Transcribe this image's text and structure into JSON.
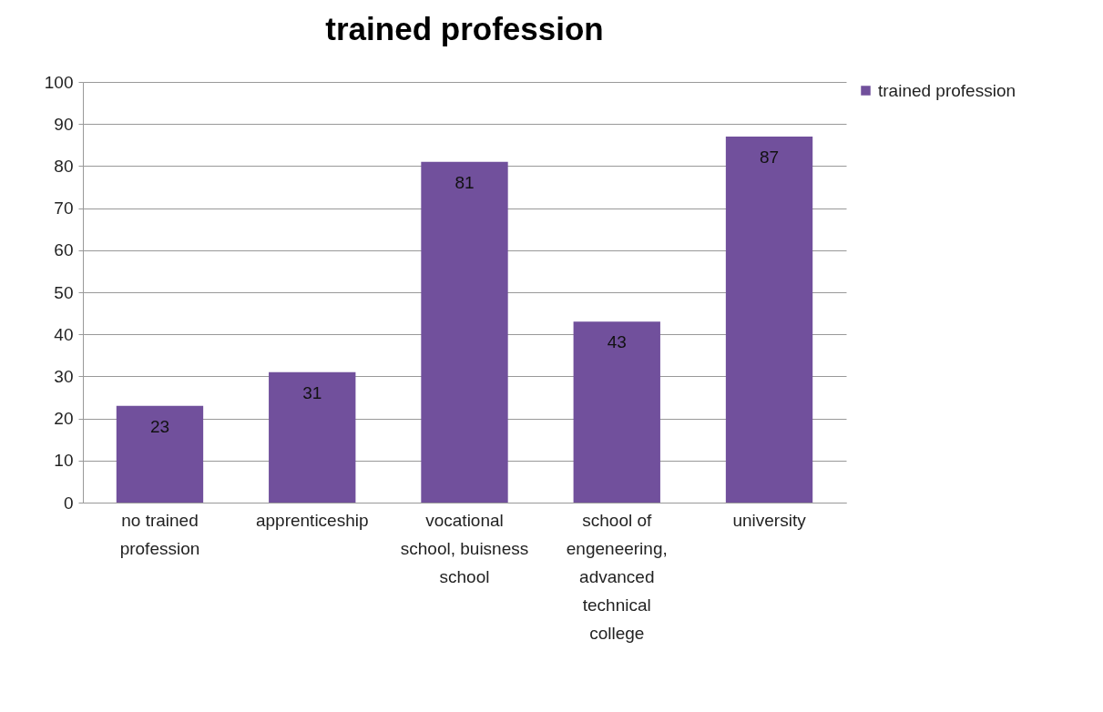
{
  "chart_data": {
    "type": "bar",
    "title": "trained profession",
    "categories": [
      "no trained profession",
      "apprenticeship",
      "vocational school, buisness school",
      "school of engeneering, advanced technical college",
      "university"
    ],
    "series": [
      {
        "name": "trained profession",
        "color": "#71509c",
        "values": [
          23,
          31,
          81,
          43,
          87
        ]
      }
    ],
    "ylim": [
      0,
      100
    ],
    "yticks": [
      0,
      10,
      20,
      30,
      40,
      50,
      60,
      70,
      80,
      90,
      100
    ],
    "grid": "y",
    "legend": "right",
    "data_labels": true
  }
}
